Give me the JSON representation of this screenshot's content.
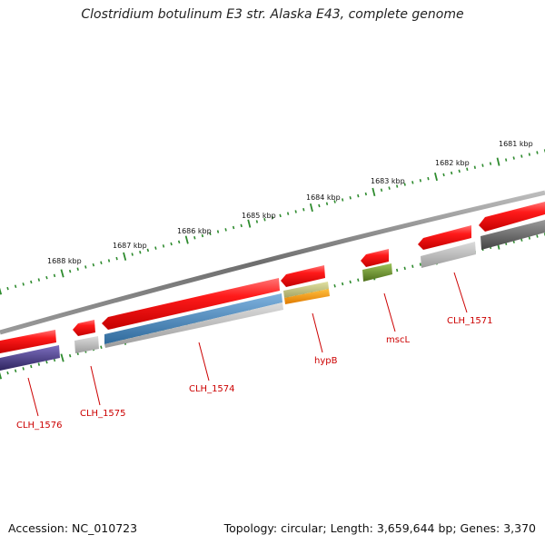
{
  "title": "Clostridium botulinum E3 str. Alaska E43, complete genome",
  "accession": "Accession: NC_010723",
  "summary": "Topology: circular; Length: 3,659,644 bp; Genes: 3,370",
  "colors": {
    "tick": "#2e8b2e",
    "backbone": "#7a7a7a",
    "gene_red": "#ee1111",
    "gene_label": "#cc0000"
  },
  "kbp_ticks": [
    {
      "label": "1681 kbp"
    },
    {
      "label": "1682 kbp"
    },
    {
      "label": "1683 kbp"
    },
    {
      "label": "1684 kbp"
    },
    {
      "label": "1685 kbp"
    },
    {
      "label": "1686 kbp"
    },
    {
      "label": "1687 kbp"
    },
    {
      "label": "1688 kbp"
    }
  ],
  "genes": [
    {
      "name": "CLH_1571",
      "color": "#ee1111",
      "feature_color": "#666666"
    },
    {
      "name": "mscL",
      "color": "#ee1111",
      "feature_color": "#6b8e23"
    },
    {
      "name": "hypB",
      "color": "#ee1111",
      "feature_color": "#ff9900"
    },
    {
      "name": "CLH_1574",
      "color": "#ee1111",
      "feature_color": "#4682b4"
    },
    {
      "name": "CLH_1575",
      "color": "#ee1111",
      "feature_color": "#aaaaaa"
    },
    {
      "name": "CLH_1576",
      "color": "#ee1111",
      "feature_color": "#4b3f8c"
    }
  ]
}
